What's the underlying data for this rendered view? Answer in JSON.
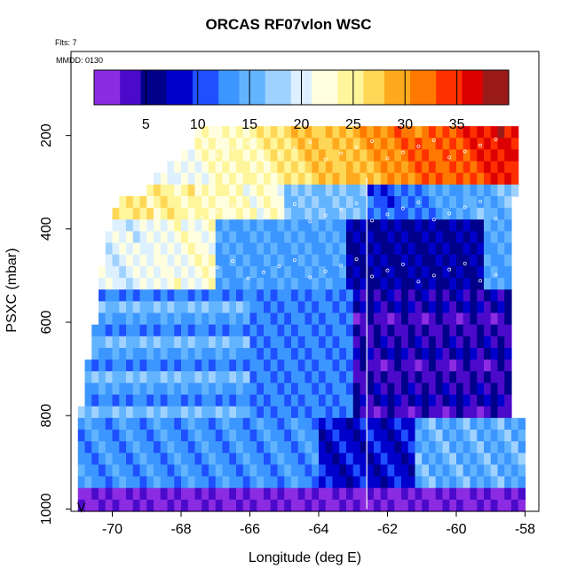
{
  "title": "ORCAS RF07vlon WSC",
  "notes": {
    "flights": "Flts: 7",
    "date": "MMDD: 0130"
  },
  "colorbar": {
    "ticks": [
      "5",
      "10",
      "15",
      "20",
      "25",
      "30",
      "35"
    ],
    "tick_values": [
      5,
      10,
      15,
      20,
      25,
      30,
      35
    ],
    "range": [
      0,
      40
    ],
    "colors": [
      "#8b2be2",
      "#4b0aca",
      "#00008b",
      "#0000cd",
      "#1e50ff",
      "#3c96ff",
      "#63b4ff",
      "#a0d2ff",
      "#dcf0ff",
      "#ffffe0",
      "#fff59a",
      "#ffd757",
      "#ffaa1e",
      "#ff7800",
      "#ff3000",
      "#dc0000",
      "#9b1b1b"
    ]
  },
  "chart_data": {
    "type": "heatmap",
    "title": "ORCAS RF07vlon WSC",
    "xlabel": "Longitude (deg E)",
    "ylabel": "PSXC (mbar)",
    "xlim": [
      -71.2,
      -57.6
    ],
    "ylim": [
      1005,
      20
    ],
    "xticks": [
      "-70",
      "-68",
      "-66",
      "-64",
      "-62",
      "-60",
      "-58"
    ],
    "xtick_values": [
      -70,
      -68,
      -66,
      -64,
      -62,
      -60,
      -58
    ],
    "yticks": [
      "200",
      "400",
      "600",
      "800",
      "1000"
    ],
    "ytick_values": [
      200,
      400,
      600,
      800,
      1000
    ],
    "value_label": "WSC",
    "columns_lon": [
      -71.0,
      -70.8,
      -70.6,
      -70.4,
      -70.2,
      -70.0,
      -69.8,
      -69.6,
      -69.4,
      -69.2,
      -69.0,
      -68.8,
      -68.6,
      -68.4,
      -68.2,
      -68.0,
      -67.8,
      -67.6,
      -67.4,
      -67.2,
      -67.0,
      -66.8,
      -66.6,
      -66.4,
      -66.2,
      -66.0,
      -65.8,
      -65.6,
      -65.4,
      -65.2,
      -65.0,
      -64.8,
      -64.6,
      -64.4,
      -64.2,
      -64.0,
      -63.8,
      -63.6,
      -63.4,
      -63.2,
      -63.0,
      -62.8,
      -62.6,
      -62.4,
      -62.2,
      -62.0,
      -61.8,
      -61.6,
      -61.4,
      -61.2,
      -61.0,
      -60.8,
      -60.6,
      -60.4,
      -60.2,
      -60.0,
      -59.8,
      -59.6,
      -59.4,
      -59.2,
      -59.0,
      -58.8,
      -58.6,
      -58.4,
      -58.2,
      -58.0
    ],
    "rows_pressure": [
      180,
      205,
      230,
      255,
      280,
      305,
      330,
      355,
      380,
      405,
      430,
      455,
      480,
      505,
      530,
      555,
      580,
      605,
      630,
      655,
      680,
      705,
      730,
      755,
      780,
      805,
      830,
      855,
      880,
      905,
      930,
      955,
      980
    ],
    "cell_size": {
      "dlon": 0.2,
      "dp": 25
    },
    "extent": [
      {
        "p": 180,
        "lon": [
          -67.6,
          -58.2
        ]
      },
      {
        "p": 205,
        "lon": [
          -67.6,
          -58.2
        ]
      },
      {
        "p": 230,
        "lon": [
          -68.0,
          -58.2
        ]
      },
      {
        "p": 255,
        "lon": [
          -68.4,
          -58.2
        ]
      },
      {
        "p": 280,
        "lon": [
          -68.8,
          -58.2
        ]
      },
      {
        "p": 305,
        "lon": [
          -69.0,
          -58.2
        ]
      },
      {
        "p": 330,
        "lon": [
          -69.8,
          -58.4
        ]
      },
      {
        "p": 355,
        "lon": [
          -70.0,
          -58.4
        ]
      },
      {
        "p": 380,
        "lon": [
          -70.0,
          -58.4
        ]
      },
      {
        "p": 405,
        "lon": [
          -70.2,
          -58.4
        ]
      },
      {
        "p": 430,
        "lon": [
          -70.2,
          -58.4
        ]
      },
      {
        "p": 455,
        "lon": [
          -70.2,
          -58.4
        ]
      },
      {
        "p": 480,
        "lon": [
          -70.4,
          -58.4
        ]
      },
      {
        "p": 505,
        "lon": [
          -70.4,
          -58.4
        ]
      },
      {
        "p": 530,
        "lon": [
          -70.4,
          -58.4
        ]
      },
      {
        "p": 555,
        "lon": [
          -70.4,
          -58.4
        ]
      },
      {
        "p": 580,
        "lon": [
          -70.4,
          -58.4
        ]
      },
      {
        "p": 605,
        "lon": [
          -70.6,
          -58.4
        ]
      },
      {
        "p": 630,
        "lon": [
          -70.6,
          -58.4
        ]
      },
      {
        "p": 655,
        "lon": [
          -70.6,
          -58.4
        ]
      },
      {
        "p": 680,
        "lon": [
          -70.8,
          -58.4
        ]
      },
      {
        "p": 705,
        "lon": [
          -70.8,
          -58.4
        ]
      },
      {
        "p": 730,
        "lon": [
          -70.8,
          -58.4
        ]
      },
      {
        "p": 755,
        "lon": [
          -70.8,
          -58.4
        ]
      },
      {
        "p": 780,
        "lon": [
          -71.0,
          -58.4
        ]
      },
      {
        "p": 805,
        "lon": [
          -71.0,
          -58.0
        ]
      },
      {
        "p": 830,
        "lon": [
          -71.0,
          -58.0
        ]
      },
      {
        "p": 855,
        "lon": [
          -71.0,
          -58.0
        ]
      },
      {
        "p": 880,
        "lon": [
          -71.0,
          -58.0
        ]
      },
      {
        "p": 905,
        "lon": [
          -71.0,
          -58.0
        ]
      },
      {
        "p": 930,
        "lon": [
          -71.0,
          -58.0
        ]
      },
      {
        "p": 955,
        "lon": [
          -71.0,
          -58.0
        ]
      },
      {
        "p": 980,
        "lon": [
          -71.0,
          -58.0
        ]
      }
    ],
    "field_description_values": {
      "upper_jet_east_200_300": 36,
      "upper_west_200_300": 22,
      "mid_west_400_500": 20,
      "mid_east_core_500_800": 5,
      "lower_west_800_950": 13,
      "lower_east_850_950": 15,
      "surface_975_1000": 2
    },
    "aircraft_track_marker_lon": -62.6
  }
}
